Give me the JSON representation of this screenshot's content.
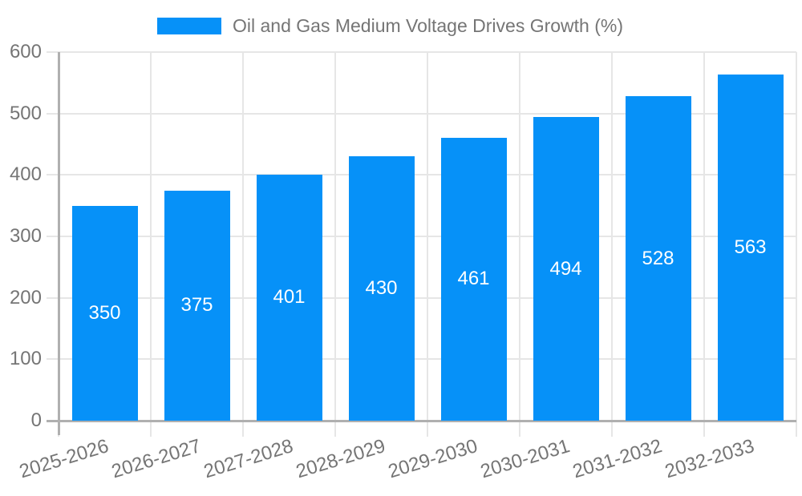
{
  "chart_data": {
    "type": "bar",
    "title": "Oil and Gas Medium Voltage Drives Growth (%)",
    "legend_position": "top",
    "categories": [
      "2025-2026",
      "2026-2027",
      "2027-2028",
      "2028-2029",
      "2029-2030",
      "2030-2031",
      "2031-2032",
      "2032-2033"
    ],
    "series": [
      {
        "name": "Oil and Gas Medium Voltage Drives Growth (%)",
        "values": [
          350,
          375,
          401,
          430,
          461,
          494,
          528,
          563
        ],
        "color": "#0691f8"
      }
    ],
    "xlabel": "",
    "ylabel": "",
    "ylim": [
      0,
      600
    ],
    "yticks": [
      0,
      100,
      200,
      300,
      400,
      500,
      600
    ],
    "grid": true,
    "value_labels": {
      "show": true,
      "position": "center",
      "color": "#ffffff"
    }
  },
  "colors": {
    "background": "#ffffff",
    "bar": "#0691f8",
    "gridline": "#e6e6e6",
    "axis_line": "#b0b0b0",
    "tick_text": "#757575",
    "legend_text": "#757575",
    "value_label_text": "#ffffff"
  }
}
